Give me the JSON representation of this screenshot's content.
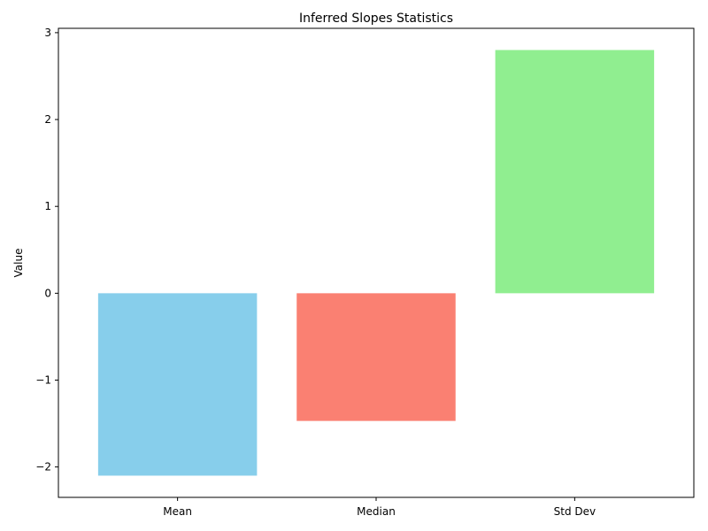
{
  "chart_data": {
    "type": "bar",
    "title": "Inferred Slopes Statistics",
    "xlabel": "",
    "ylabel": "Value",
    "categories": [
      "Mean",
      "Median",
      "Std Dev"
    ],
    "values": [
      -2.1,
      -1.47,
      2.8
    ],
    "colors": [
      "#87ceeb",
      "#fa8072",
      "#90ee90"
    ],
    "ylim": [
      -2.35,
      3.05
    ],
    "yticks": [
      -2,
      -1,
      0,
      1,
      2,
      3
    ],
    "ytick_labels": [
      "−2",
      "−1",
      "0",
      "1",
      "2",
      "3"
    ],
    "grid": false,
    "legend": "none"
  }
}
